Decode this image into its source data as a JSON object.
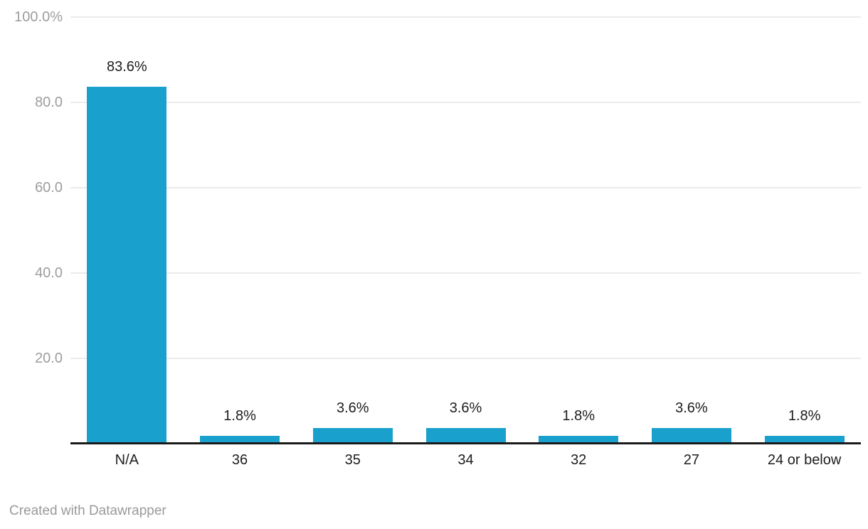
{
  "colors": {
    "bar": "#1aa0cc",
    "grid": "#ebebeb",
    "axis_text": "#9d9d9d",
    "label_text": "#1d1d1d",
    "baseline": "#1a1a1a",
    "footer_text": "#9a9a9a",
    "background": "#ffffff"
  },
  "chart_data": {
    "type": "bar",
    "title": "",
    "xlabel": "",
    "ylabel": "",
    "categories": [
      "N/A",
      "36",
      "35",
      "34",
      "32",
      "27",
      "24 or below"
    ],
    "values": [
      83.6,
      1.8,
      3.6,
      3.6,
      1.8,
      3.6,
      1.8
    ],
    "value_labels": [
      "83.6%",
      "1.8%",
      "3.6%",
      "3.6%",
      "1.8%",
      "3.6%",
      "1.8%"
    ],
    "ylim": [
      0,
      100
    ],
    "y_ticks": [
      {
        "value": 100,
        "label": "100.0%"
      },
      {
        "value": 80,
        "label": "80.0"
      },
      {
        "value": 60,
        "label": "60.0"
      },
      {
        "value": 40,
        "label": "40.0"
      },
      {
        "value": 20,
        "label": "20.0"
      }
    ],
    "grid": "horizontal",
    "legend": "none"
  },
  "footer": {
    "credit": "Created with Datawrapper"
  }
}
